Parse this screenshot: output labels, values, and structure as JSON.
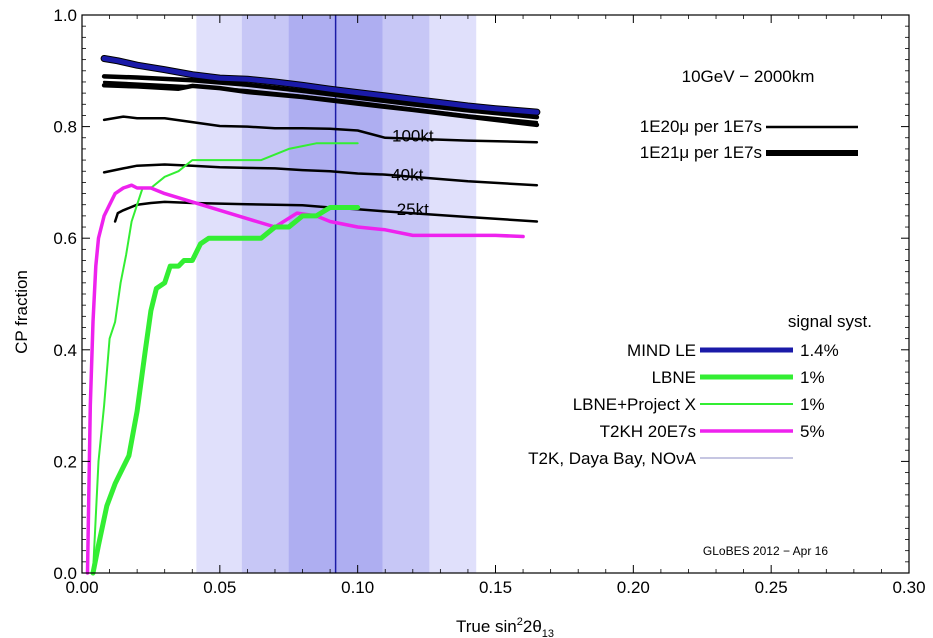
{
  "chart_data": {
    "type": "line",
    "xlabel": "True sin²2θ₁₃",
    "ylabel": "CP fraction",
    "xlim": [
      0,
      0.3
    ],
    "ylim": [
      0,
      1
    ],
    "xticks": [
      0,
      0.05,
      0.1,
      0.15,
      0.2,
      0.25,
      0.3
    ],
    "xtick_labels": [
      "0.00",
      "0.05",
      "0.10",
      "0.15",
      "0.20",
      "0.25",
      "0.30"
    ],
    "yticks": [
      0,
      0.2,
      0.4,
      0.6,
      0.8,
      1.0
    ],
    "ytick_labels": [
      "0.0",
      "0.2",
      "0.4",
      "0.6",
      "0.8",
      "1.0"
    ],
    "grid": false,
    "scenario": "10GeV − 2000km",
    "credit": "GLoBES 2012 − Apr 16",
    "bands": [
      {
        "x": [
          0.0415,
          0.143
        ],
        "color": "#e0e0fb"
      },
      {
        "x": [
          0.058,
          0.126
        ],
        "color": "#c7c7f6"
      },
      {
        "x": [
          0.075,
          0.109
        ],
        "color": "#aeaef1"
      }
    ],
    "vline": {
      "x": 0.092,
      "color": "#1c1ca6"
    },
    "line_width_key": [
      {
        "label": "1E20μ per 1E7s"
      },
      {
        "label": "1E21μ per 1E7s"
      }
    ],
    "series": [
      {
        "name": "MIND LE",
        "syst": "1.4%",
        "color": "#1a1aa8",
        "width": 5,
        "x": [
          0.008,
          0.013,
          0.02,
          0.03,
          0.04,
          0.05,
          0.06,
          0.07,
          0.08,
          0.09,
          0.1,
          0.11,
          0.12,
          0.13,
          0.14,
          0.15,
          0.165
        ],
        "y": [
          0.922,
          0.918,
          0.91,
          0.902,
          0.893,
          0.887,
          0.885,
          0.88,
          0.874,
          0.867,
          0.861,
          0.855,
          0.849,
          0.843,
          0.837,
          0.832,
          0.826
        ]
      },
      {
        "name": "LBNE",
        "syst": "1%",
        "color": "#33ee33",
        "width": 5,
        "x": [
          0.004,
          0.006,
          0.009,
          0.012,
          0.015,
          0.017,
          0.02,
          0.023,
          0.025,
          0.027,
          0.03,
          0.032,
          0.035,
          0.037,
          0.04,
          0.043,
          0.046,
          0.05,
          0.055,
          0.06,
          0.065,
          0.07,
          0.075,
          0.08,
          0.085,
          0.09,
          0.095,
          0.1
        ],
        "y": [
          0.0,
          0.05,
          0.12,
          0.16,
          0.19,
          0.21,
          0.29,
          0.4,
          0.47,
          0.51,
          0.52,
          0.55,
          0.55,
          0.56,
          0.56,
          0.59,
          0.6,
          0.6,
          0.6,
          0.6,
          0.6,
          0.62,
          0.62,
          0.64,
          0.64,
          0.655,
          0.655,
          0.655
        ]
      },
      {
        "name": "LBNE+Project X",
        "syst": "1%",
        "color": "#33ee33",
        "width": 2,
        "x": [
          0.004,
          0.006,
          0.008,
          0.01,
          0.012,
          0.014,
          0.016,
          0.018,
          0.02,
          0.022,
          0.025,
          0.03,
          0.035,
          0.04,
          0.05,
          0.065,
          0.075,
          0.08,
          0.085,
          0.1
        ],
        "y": [
          0.0,
          0.2,
          0.3,
          0.42,
          0.45,
          0.52,
          0.57,
          0.63,
          0.66,
          0.69,
          0.69,
          0.71,
          0.72,
          0.74,
          0.74,
          0.74,
          0.76,
          0.765,
          0.77,
          0.77
        ]
      },
      {
        "name": "T2KH 20E7s",
        "syst": "5%",
        "color": "#ee22ee",
        "width": 3.5,
        "x": [
          0.002,
          0.003,
          0.004,
          0.005,
          0.006,
          0.008,
          0.01,
          0.012,
          0.015,
          0.018,
          0.02,
          0.025,
          0.03,
          0.04,
          0.05,
          0.06,
          0.07,
          0.078,
          0.085,
          0.09,
          0.1,
          0.11,
          0.12,
          0.13,
          0.14,
          0.15,
          0.16
        ],
        "y": [
          0.0,
          0.3,
          0.45,
          0.55,
          0.6,
          0.64,
          0.66,
          0.68,
          0.69,
          0.695,
          0.69,
          0.69,
          0.68,
          0.665,
          0.65,
          0.635,
          0.62,
          0.645,
          0.64,
          0.63,
          0.62,
          0.615,
          0.605,
          0.605,
          0.605,
          0.605,
          0.603
        ]
      },
      {
        "name": "T2K, Daya Bay, NOνA",
        "syst": "",
        "color": "#8c8cc4",
        "width": 1,
        "x": [],
        "y": []
      }
    ],
    "black_curves": [
      {
        "label": "",
        "width": 4.5,
        "x": [
          0.008,
          0.02,
          0.04,
          0.06,
          0.08,
          0.1,
          0.12,
          0.14,
          0.165
        ],
        "y": [
          0.89,
          0.888,
          0.883,
          0.875,
          0.864,
          0.852,
          0.84,
          0.829,
          0.817
        ]
      },
      {
        "label": "",
        "width": 4.5,
        "x": [
          0.008,
          0.02,
          0.035,
          0.04,
          0.05,
          0.06,
          0.08,
          0.1,
          0.12,
          0.14,
          0.165
        ],
        "y": [
          0.874,
          0.872,
          0.868,
          0.873,
          0.869,
          0.862,
          0.853,
          0.841,
          0.83,
          0.818,
          0.803
        ]
      },
      {
        "label": "",
        "width": 2.5,
        "x": [
          0.008,
          0.02,
          0.04,
          0.06,
          0.08,
          0.1,
          0.12,
          0.14,
          0.165
        ],
        "y": [
          0.88,
          0.877,
          0.872,
          0.865,
          0.855,
          0.844,
          0.832,
          0.82,
          0.808
        ]
      },
      {
        "label": "100kt",
        "width": 2.5,
        "x": [
          0.008,
          0.015,
          0.02,
          0.03,
          0.04,
          0.05,
          0.06,
          0.07,
          0.08,
          0.09,
          0.1,
          0.11,
          0.14,
          0.165
        ],
        "y": [
          0.812,
          0.818,
          0.815,
          0.815,
          0.808,
          0.801,
          0.8,
          0.797,
          0.797,
          0.796,
          0.793,
          0.78,
          0.775,
          0.772
        ],
        "label_at": [
          0.12,
          0.777
        ]
      },
      {
        "label": "40kt",
        "width": 2.5,
        "x": [
          0.008,
          0.015,
          0.02,
          0.03,
          0.04,
          0.05,
          0.06,
          0.07,
          0.08,
          0.09,
          0.1,
          0.11,
          0.14,
          0.165
        ],
        "y": [
          0.718,
          0.725,
          0.73,
          0.732,
          0.73,
          0.727,
          0.726,
          0.725,
          0.722,
          0.72,
          0.716,
          0.714,
          0.702,
          0.695
        ],
        "label_at": [
          0.118,
          0.707
        ]
      },
      {
        "label": "25kt",
        "width": 2.5,
        "x": [
          0.012,
          0.013,
          0.015,
          0.02,
          0.025,
          0.03,
          0.04,
          0.05,
          0.06,
          0.07,
          0.08,
          0.09,
          0.1,
          0.11,
          0.14,
          0.165
        ],
        "y": [
          0.63,
          0.645,
          0.65,
          0.66,
          0.663,
          0.665,
          0.663,
          0.662,
          0.661,
          0.66,
          0.659,
          0.655,
          0.652,
          0.648,
          0.638,
          0.63
        ],
        "label_at": [
          0.12,
          0.645
        ]
      }
    ],
    "legend_title": "signal syst."
  }
}
